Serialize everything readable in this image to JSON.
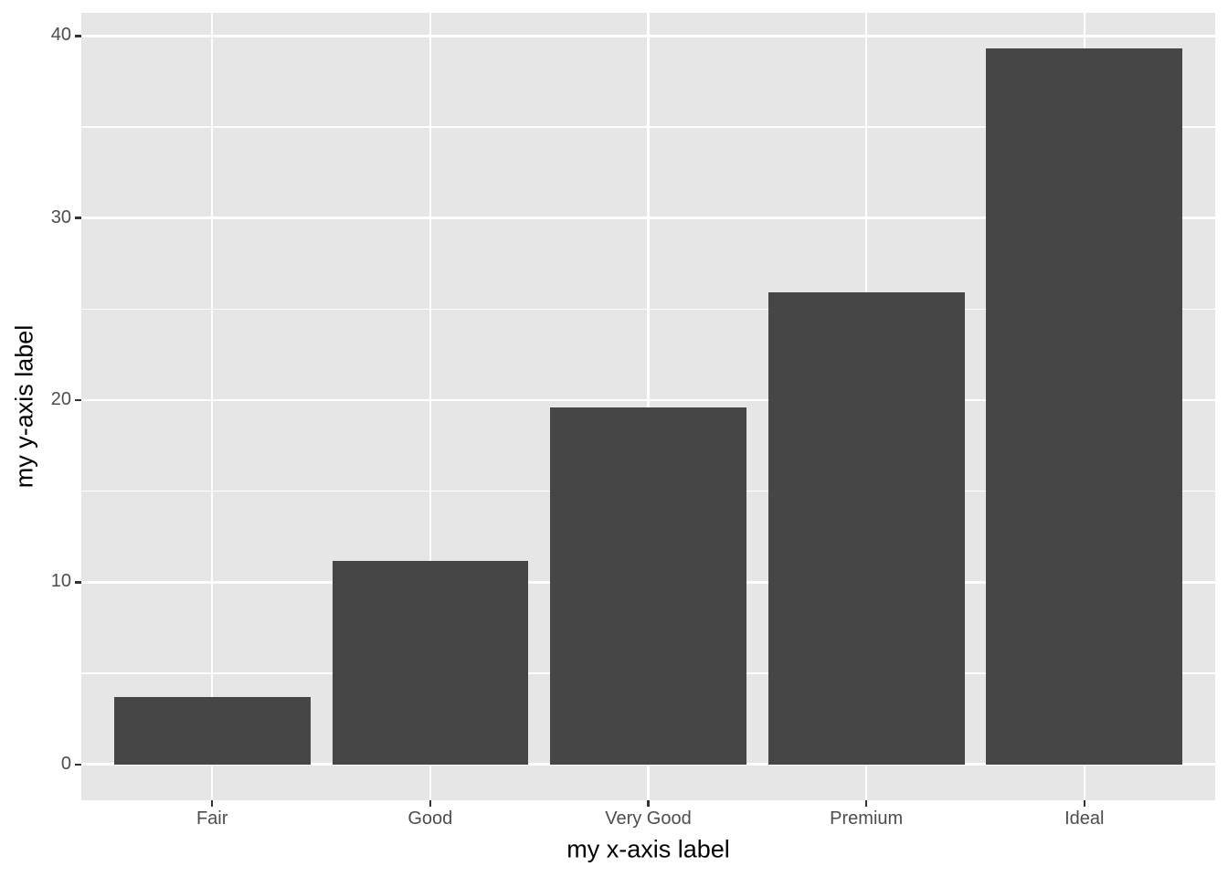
{
  "figure": {
    "background": "#FFFFFF"
  },
  "chart_data": {
    "type": "bar",
    "title": "",
    "xlabel": "my x-axis label",
    "ylabel": "my y-axis label",
    "categories": [
      "Fair",
      "Good",
      "Very Good",
      "Premium",
      "Ideal"
    ],
    "values": [
      3.7,
      11.2,
      19.6,
      25.9,
      39.3
    ],
    "y_ticks": [
      0,
      10,
      20,
      30,
      40
    ],
    "y_minor_ticks": [
      5,
      15,
      25,
      35
    ],
    "ylim": [
      -1.97,
      41.27
    ],
    "bar_width_fraction": 0.9,
    "grid": "white major and minor horizontal lines, white vertical line at each category center",
    "legend_position": "none",
    "theme": "ggplot2 theme_grey",
    "colors": {
      "panel_background": "#E6E6E6",
      "bar_fill": "#464646",
      "gridline": "#FFFFFF",
      "tick_mark": "#333333",
      "tick_label": "#4D4D4D",
      "axis_title": "#000000"
    }
  }
}
